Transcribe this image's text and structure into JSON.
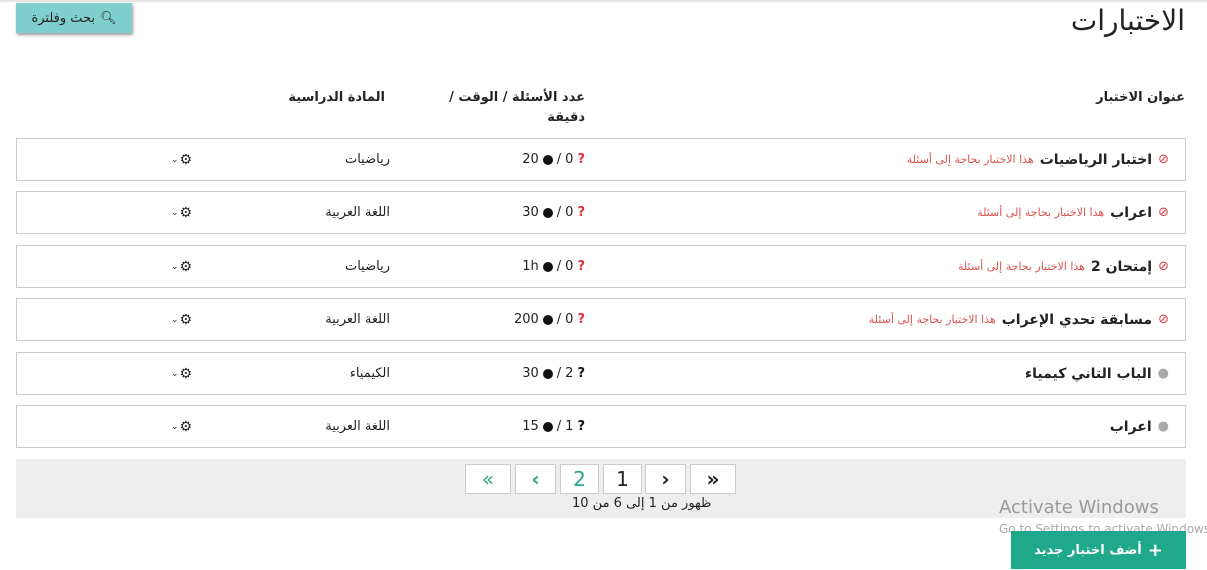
{
  "page": {
    "title": "الاختبارات",
    "filter_label": "بحث وفلترة",
    "add_label": "أضف اختبار جديد"
  },
  "headers": {
    "title": "عنوان الاختبار",
    "questions_time": "عدد الأسئلة / الوقت / دقيقة",
    "subject": "المادة الدراسية"
  },
  "rows": [
    {
      "title": "اختبار الرياضيات",
      "warning": "هذا الاختبار بحاجة إلى أسئلة",
      "status": "blocked",
      "questions": "0",
      "time": "20",
      "subject": "رياضيات"
    },
    {
      "title": "اعراب",
      "warning": "هذا الاختبار بحاجة إلى أسئلة",
      "status": "blocked",
      "questions": "0",
      "time": "30",
      "subject": "اللغة العربية"
    },
    {
      "title": "إمتحان 2",
      "warning": "هذا الاختبار بحاجة إلى أسئلة",
      "status": "blocked",
      "questions": "0",
      "time": "1h",
      "subject": "رياضيات"
    },
    {
      "title": "مسابقة تحدي الإعراب",
      "warning": "هذا الاختبار بحاجة إلى أسئلة",
      "status": "blocked",
      "questions": "0",
      "time": "200",
      "subject": "اللغة العربية"
    },
    {
      "title": "الباب التاني كيمياء",
      "warning": "",
      "status": "ok",
      "questions": "2",
      "time": "30",
      "subject": "الكيمياء"
    },
    {
      "title": "اعراب",
      "warning": "",
      "status": "ok",
      "questions": "1",
      "time": "15",
      "subject": "اللغة العربية"
    }
  ],
  "pagination": {
    "pages": [
      "2",
      "1"
    ],
    "current": "2",
    "info": "ظهور من 1 إلى 6 من 10"
  },
  "watermark": {
    "line1": "Activate Windows",
    "line2": "Go to Settings to activate Windows."
  },
  "colors": {
    "accent": "#1fa98a",
    "filter": "#7fcfcf",
    "warning": "#d9534f"
  }
}
